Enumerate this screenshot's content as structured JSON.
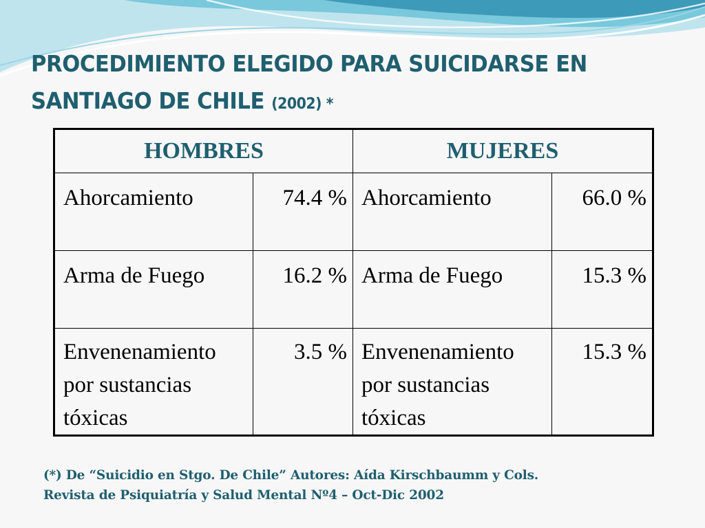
{
  "slide": {
    "title_line1": "PROCEDIMIENTO ELEGIDO PARA SUICIDARSE EN",
    "title_line2": "SANTIAGO DE CHILE",
    "title_suffix": "(2002) *"
  },
  "table": {
    "headers": [
      "HOMBRES",
      "MUJERES"
    ],
    "rows": [
      {
        "men_method": "Ahorcamiento",
        "men_pct": "74.4 %",
        "women_method": "Ahorcamiento",
        "women_pct": "66.0 %"
      },
      {
        "men_method": "Arma de Fuego",
        "men_pct": "16.2 %",
        "women_method": "Arma de Fuego",
        "women_pct": "15.3 %"
      },
      {
        "men_method": "Envenenamiento por sustancias tóxicas",
        "men_pct": "3.5 %",
        "women_method": "Envenenamiento por sustancias tóxicas",
        "women_pct": "15.3 %"
      }
    ]
  },
  "footnote": {
    "line1": "(*) De “Suicidio en Stgo. De Chile” Autores: Aída Kirschbaumm y Cols.",
    "line2": "Revista de Psiquiatría y Salud Mental Nº4 – Oct-Dic 2002"
  },
  "colors": {
    "accent": "#1f5f6f",
    "wave_light": "#bfe4ee",
    "wave_mid": "#6cc3d8",
    "wave_dark": "#2e8fb0"
  }
}
